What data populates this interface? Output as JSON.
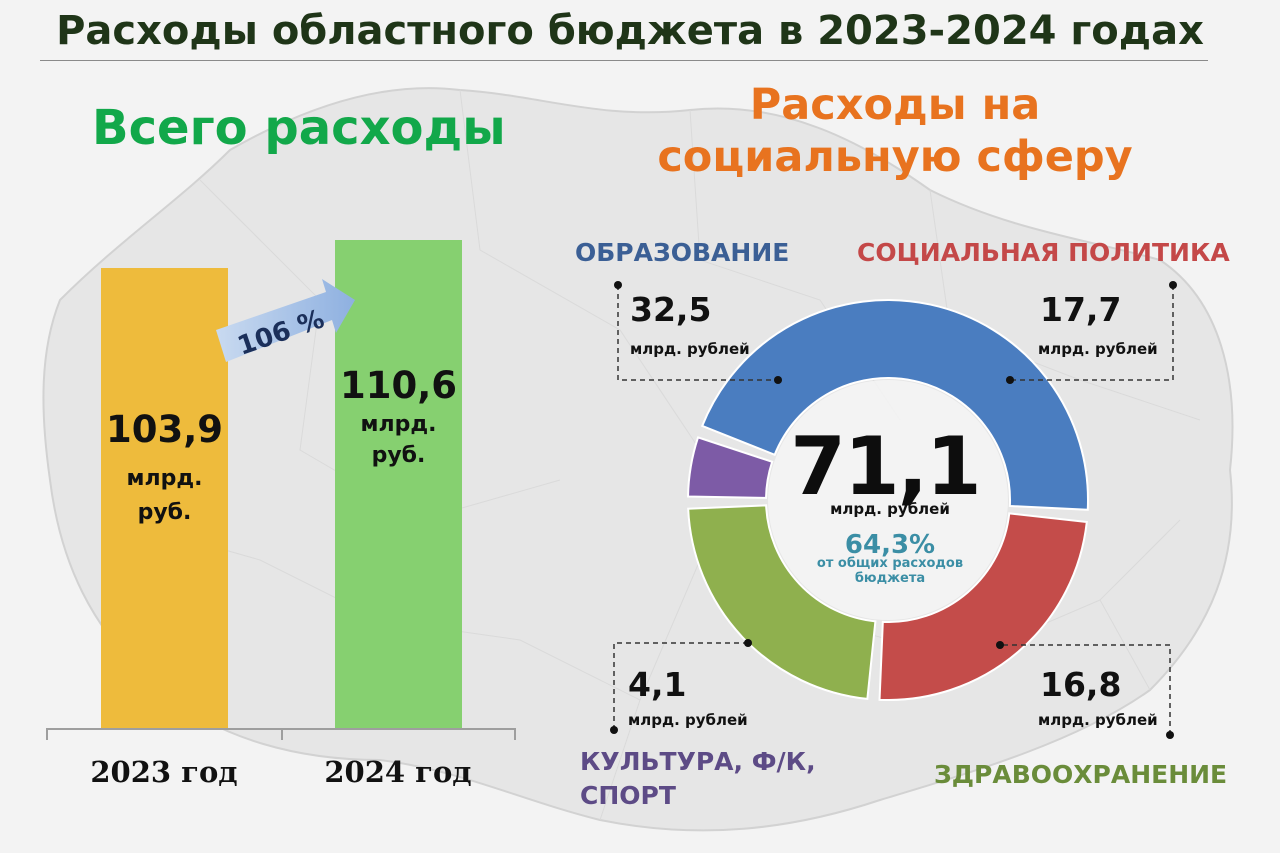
{
  "title": "Расходы областного бюджета в 2023-2024 годах",
  "left_heading": "Всего расходы",
  "right_heading_line1": "Расходы на",
  "right_heading_line2": "социальную сферу",
  "growth_label": "106 %",
  "bars": {
    "y2023": {
      "value": "103,9",
      "unit_line1": "млрд.",
      "unit_line2": "руб.",
      "label": "2023 год"
    },
    "y2024": {
      "value": "110,6",
      "unit_line1": "млрд.",
      "unit_line2": "руб.",
      "label": "2024 год"
    }
  },
  "donut_center": {
    "value": "71,1",
    "unit": "млрд. рублей",
    "percent": "64,3%",
    "note_line1": "от общих расходов",
    "note_line2": "бюджета"
  },
  "segments": {
    "education": {
      "title": "ОБРАЗОВАНИЕ",
      "value": "32,5",
      "unit": "млрд. рублей",
      "color": "#4a7dc0"
    },
    "social": {
      "title": "СОЦИАЛЬНАЯ ПОЛИТИКА",
      "value": "17,7",
      "unit": "млрд. рублей",
      "color": "#c44c4a"
    },
    "culture": {
      "title_line1": "КУЛЬТУРА, Ф/К,",
      "title_line2": "СПОРТ",
      "value": "4,1",
      "unit": "млрд. рублей",
      "color": "#7d5ba6"
    },
    "health": {
      "title": "ЗДРАВООХРАНЕНИЕ",
      "value": "16,8",
      "unit": "млрд. рублей",
      "color": "#8fb04e"
    }
  },
  "colors": {
    "title": "#1f3518",
    "left_heading": "#12a84a",
    "right_heading": "#e8731f",
    "bar_2023": "#eebb3c",
    "bar_2024": "#86d070",
    "arrow": "#a9c4e6"
  },
  "chart_data": [
    {
      "type": "bar",
      "categories": [
        "2023 год",
        "2024 год"
      ],
      "values": [
        103.9,
        110.6
      ],
      "title": "Всего расходы",
      "annotations": [
        "106 %"
      ]
    },
    {
      "type": "pie",
      "title": "Расходы на социальную сферу",
      "labels": [
        "ОБРАЗОВАНИЕ",
        "СОЦИАЛЬНАЯ ПОЛИТИКА",
        "ЗДРАВООХРАНЕНИЕ",
        "КУЛЬТУРА, Ф/К, СПОРТ"
      ],
      "values": [
        32.5,
        17.7,
        16.8,
        4.1
      ],
      "total": 71.1,
      "share_of_budget": 64.3
    }
  ]
}
